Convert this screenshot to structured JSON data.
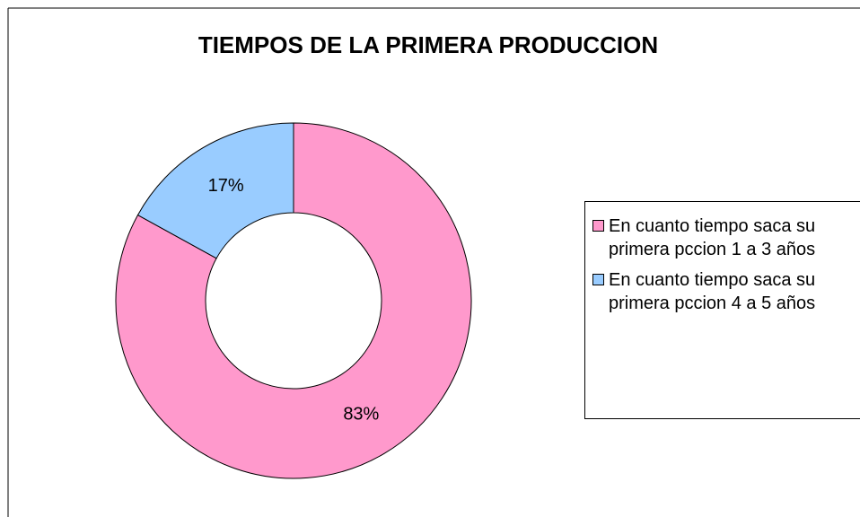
{
  "chart_data": {
    "type": "donut",
    "title": "TIEMPOS DE LA PRIMERA PRODUCCION",
    "categories": [
      "En cuanto tiempo saca su primera pccion 1 a 3 años",
      "En cuanto tiempo saca su primera pccion 4 a 5 años"
    ],
    "values": [
      83,
      17
    ],
    "value_labels": [
      "83%",
      "17%"
    ],
    "colors": [
      "#ff99cc",
      "#99ccff"
    ],
    "legend": "right"
  }
}
